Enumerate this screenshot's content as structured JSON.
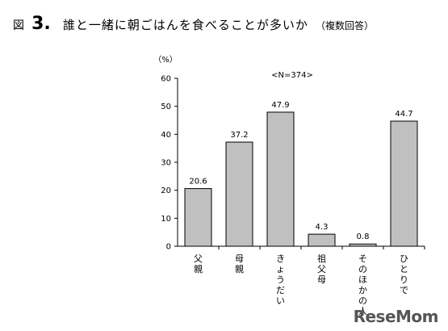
{
  "title": {
    "fig_label": "図",
    "fig_number": "3.",
    "main": "誰と一緒に朝ごはんを食べることが多いか",
    "note": "（複数回答）"
  },
  "chart_data": {
    "type": "bar",
    "categories": [
      "父親",
      "母親",
      "きょうだい",
      "祖父母",
      "そのほかの人",
      "ひとりで"
    ],
    "values": [
      20.6,
      37.2,
      47.9,
      4.3,
      0.8,
      44.7
    ],
    "value_labels": [
      "20.6",
      "37.2",
      "47.9",
      "4.3",
      "0.8",
      "44.7"
    ],
    "y_ticks": [
      0,
      10,
      20,
      30,
      40,
      50,
      60
    ],
    "ylim": [
      0,
      60
    ],
    "y_unit": "（%）",
    "annotation": "<N=374>",
    "grid": false,
    "bar_color": "#c0c0c0",
    "bar_stroke": "#000000"
  },
  "logo": "ReseMom"
}
